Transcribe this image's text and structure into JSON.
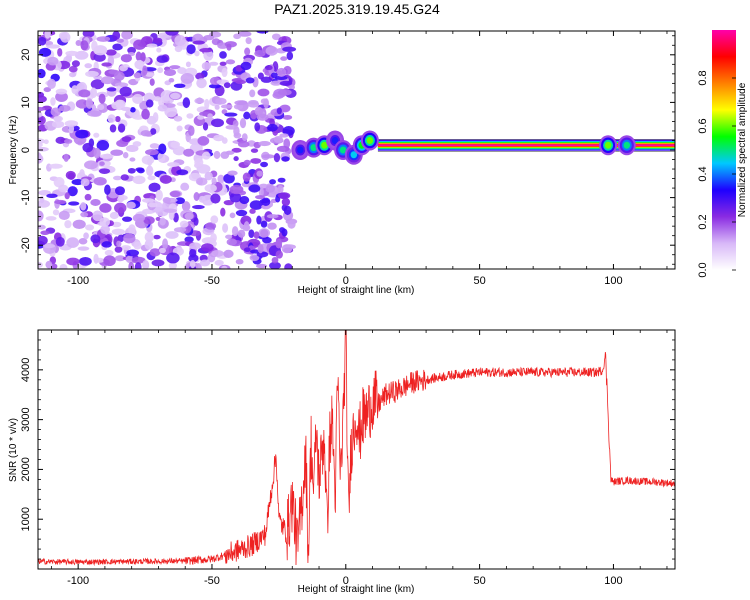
{
  "title": "PAZ1.2025.319.19.45.G24",
  "chart_data": [
    {
      "type": "heatmap",
      "title": "PAZ1.2025.319.19.45.G24",
      "xlabel": "Height of straight line (km)",
      "ylabel": "Frequency (Hz)",
      "xlim": [
        -115,
        123
      ],
      "ylim": [
        -25,
        25
      ],
      "xticks": [
        -100,
        -50,
        0,
        50,
        100
      ],
      "yticks": [
        -20,
        -10,
        0,
        10,
        20
      ],
      "xtick_labels": [
        "-100",
        "-50",
        "0",
        "50",
        "100"
      ],
      "ytick_labels": [
        "-20",
        "-10",
        "0",
        "10",
        "20"
      ],
      "noise_region_x": [
        -115,
        -20
      ],
      "signal_line": {
        "x_start": 12,
        "x_end": 123,
        "frequency": 1,
        "amplitude": 1.0
      },
      "signal_blobs": [
        {
          "x": -17,
          "y": 0,
          "amp": 0.35
        },
        {
          "x": -12,
          "y": 0.5,
          "amp": 0.5
        },
        {
          "x": -8,
          "y": 1,
          "amp": 0.6
        },
        {
          "x": -4,
          "y": 2,
          "amp": 0.35
        },
        {
          "x": -1,
          "y": 0,
          "amp": 0.5
        },
        {
          "x": 3,
          "y": -1,
          "amp": 0.45
        },
        {
          "x": 6,
          "y": 1,
          "amp": 0.55
        },
        {
          "x": 9,
          "y": 2,
          "amp": 0.6
        },
        {
          "x": 98,
          "y": 1,
          "amp": 0.6
        },
        {
          "x": 105,
          "y": 1,
          "amp": 0.5
        }
      ],
      "colorbar": {
        "label": "Normalized spectral amplitude",
        "range": [
          0.0,
          1.0
        ],
        "ticks": [
          0.0,
          0.2,
          0.4,
          0.6,
          0.8
        ],
        "tick_labels": [
          "0.0",
          "0.2",
          "0.4",
          "0.6",
          "0.8"
        ],
        "colors": [
          "#ffffff",
          "#d8b8f8",
          "#8a2be2",
          "#1e00ff",
          "#00c8ff",
          "#00ff00",
          "#ffff00",
          "#ff8000",
          "#ff0000",
          "#ff00aa"
        ]
      }
    },
    {
      "type": "line",
      "xlabel": "Height of straight line (km)",
      "ylabel": "SNR (10 * v/v)",
      "xlim": [
        -115,
        123
      ],
      "ylim": [
        0,
        4800
      ],
      "xticks": [
        -100,
        -50,
        0,
        50,
        100
      ],
      "yticks": [
        1000,
        2000,
        3000,
        4000
      ],
      "xtick_labels": [
        "-100",
        "-50",
        "0",
        "50",
        "100"
      ],
      "ytick_labels": [
        "1000",
        "2000",
        "3000",
        "4000"
      ],
      "color": "#ee2222",
      "series": [
        {
          "name": "SNR",
          "x": [
            -115,
            -100,
            -80,
            -60,
            -50,
            -45,
            -40,
            -35,
            -30,
            -28,
            -26,
            -25,
            -24,
            -22,
            -20,
            -18,
            -16,
            -15,
            -14,
            -13,
            -12,
            -11,
            -10,
            -9,
            -8,
            -7,
            -6,
            -5,
            -4,
            -3,
            -2,
            -1,
            0,
            1,
            2,
            3,
            4,
            5,
            6,
            8,
            10,
            12,
            15,
            20,
            25,
            30,
            40,
            50,
            60,
            70,
            80,
            85,
            90,
            94,
            96,
            97,
            98,
            99,
            100,
            105,
            110,
            115,
            123
          ],
          "values": [
            150,
            140,
            150,
            160,
            200,
            280,
            380,
            480,
            700,
            1500,
            2300,
            1000,
            900,
            700,
            1400,
            400,
            1600,
            2400,
            300,
            2600,
            1500,
            2800,
            1800,
            2300,
            2700,
            800,
            2600,
            3000,
            1400,
            3800,
            1800,
            3000,
            4700,
            1000,
            2500,
            2800,
            3200,
            2600,
            3000,
            3100,
            3400,
            3300,
            3500,
            3600,
            3750,
            3800,
            3900,
            3950,
            3950,
            3950,
            3950,
            3950,
            3950,
            3950,
            4000,
            4300,
            3200,
            1800,
            1750,
            1780,
            1760,
            1750,
            1720
          ]
        }
      ]
    }
  ]
}
